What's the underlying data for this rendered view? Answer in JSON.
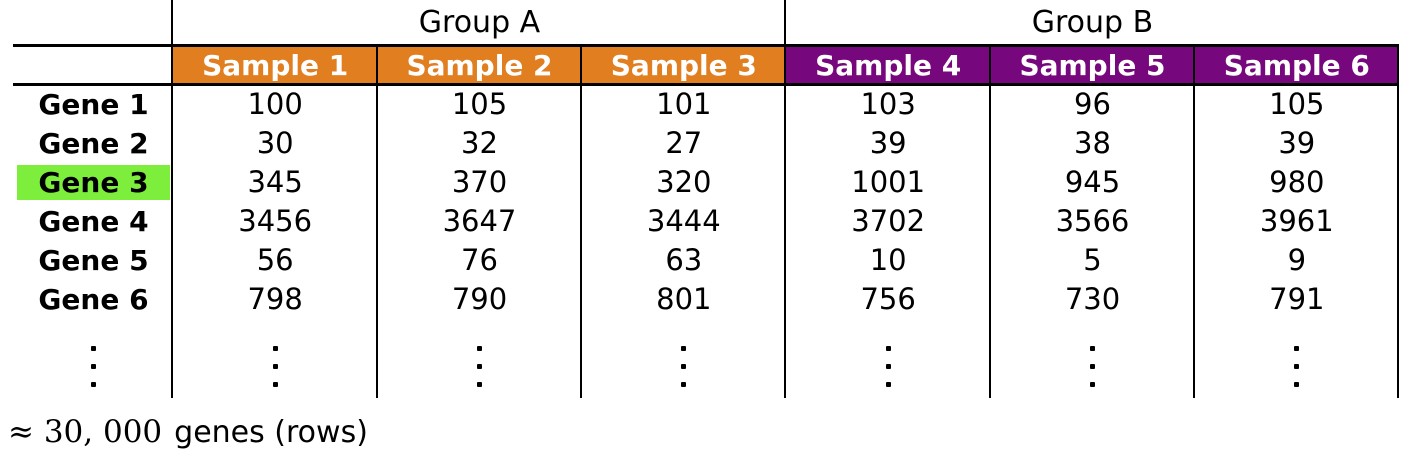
{
  "chart_data": {
    "type": "table",
    "column_groups": [
      {
        "label": "Group A",
        "color": "#E07E20",
        "columns": [
          "Sample 1",
          "Sample 2",
          "Sample 3"
        ]
      },
      {
        "label": "Group B",
        "color": "#76077D",
        "columns": [
          "Sample 4",
          "Sample 5",
          "Sample 6"
        ]
      }
    ],
    "rows": [
      {
        "gene": "Gene 1",
        "values": [
          100,
          105,
          101,
          103,
          96,
          105
        ],
        "highlighted": false
      },
      {
        "gene": "Gene 2",
        "values": [
          30,
          32,
          27,
          39,
          38,
          39
        ],
        "highlighted": false
      },
      {
        "gene": "Gene 3",
        "values": [
          345,
          370,
          320,
          1001,
          945,
          980
        ],
        "highlighted": true
      },
      {
        "gene": "Gene 4",
        "values": [
          3456,
          3647,
          3444,
          3702,
          3566,
          3961
        ],
        "highlighted": false
      },
      {
        "gene": "Gene 5",
        "values": [
          56,
          76,
          63,
          10,
          5,
          9
        ],
        "highlighted": false
      },
      {
        "gene": "Gene 6",
        "values": [
          798,
          790,
          801,
          756,
          730,
          791
        ],
        "highlighted": false
      }
    ],
    "highlight_color": "#7CEE3B",
    "ellipsis": "⋮",
    "caption": {
      "math": "≈ 30, 000",
      "text": "genes (rows)"
    }
  }
}
